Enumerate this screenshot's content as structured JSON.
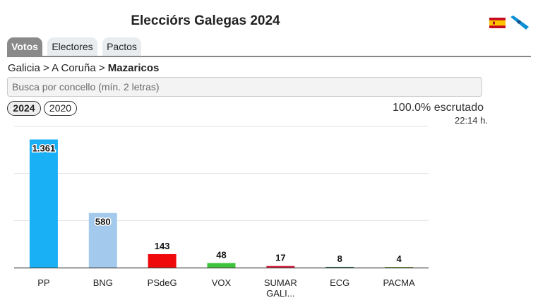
{
  "header": {
    "title": "Elecciórs Galegas 2024"
  },
  "languages": [
    {
      "icon": "spain-flag-icon",
      "colors": [
        "#c60b1e",
        "#ffc400"
      ]
    },
    {
      "icon": "galicia-flag-icon",
      "colors": [
        "#ffffff",
        "#0a8fd4"
      ]
    }
  ],
  "tabs": [
    {
      "label": "Votos",
      "active": true
    },
    {
      "label": "Electores",
      "active": false
    },
    {
      "label": "Pactos",
      "active": false
    }
  ],
  "breadcrumb": {
    "level1": "Galicia",
    "separator": ">",
    "level2": "A Coruña",
    "current": "Mazaricos"
  },
  "search": {
    "placeholder": "Busca por concello (mín. 2 letras)"
  },
  "years": [
    {
      "label": "2024",
      "active": true
    },
    {
      "label": "2020",
      "active": false
    }
  ],
  "status": {
    "counted": "100.0% escrutado",
    "time": "22:14 h."
  },
  "chart_data": {
    "type": "bar",
    "categories": [
      "PP",
      "BNG",
      "PSdeG",
      "VOX",
      "SUMAR GALI...",
      "ECG",
      "PACMA"
    ],
    "values": [
      1361,
      580,
      143,
      48,
      17,
      8,
      4
    ],
    "value_labels": [
      "1.361",
      "580",
      "143",
      "48",
      "17",
      "8",
      "4"
    ],
    "colors": [
      "#1ab0f5",
      "#a3c9ec",
      "#f0090b",
      "#3ec43b",
      "#d6213f",
      "#2f6b4f",
      "#7a9c3b"
    ],
    "ylim": [
      0,
      1500
    ],
    "grid": true,
    "title": "",
    "xlabel": "",
    "ylabel": ""
  }
}
